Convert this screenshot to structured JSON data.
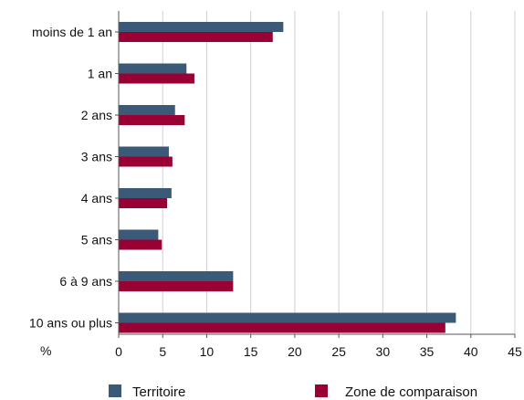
{
  "chart_data": {
    "type": "bar",
    "orientation": "horizontal",
    "categories": [
      "moins de 1 an",
      "1 an",
      "2 ans",
      "3 ans",
      "4 ans",
      "5 ans",
      "6 à 9 ans",
      "10 ans ou plus"
    ],
    "series": [
      {
        "name": "Territoire",
        "color": "#3b5a78",
        "values": [
          18.7,
          7.7,
          6.4,
          5.7,
          6.0,
          4.5,
          13.0,
          38.3
        ]
      },
      {
        "name": "Zone de comparaison",
        "color": "#990033",
        "values": [
          17.5,
          8.6,
          7.5,
          6.1,
          5.5,
          4.9,
          13.0,
          37.1
        ]
      }
    ],
    "xlim": [
      0,
      45
    ],
    "xticks": [
      "0",
      "5",
      "10",
      "15",
      "20",
      "25",
      "30",
      "35",
      "40",
      "45"
    ],
    "unit_label": "%",
    "grid": "vertical",
    "legend_position": "bottom"
  }
}
